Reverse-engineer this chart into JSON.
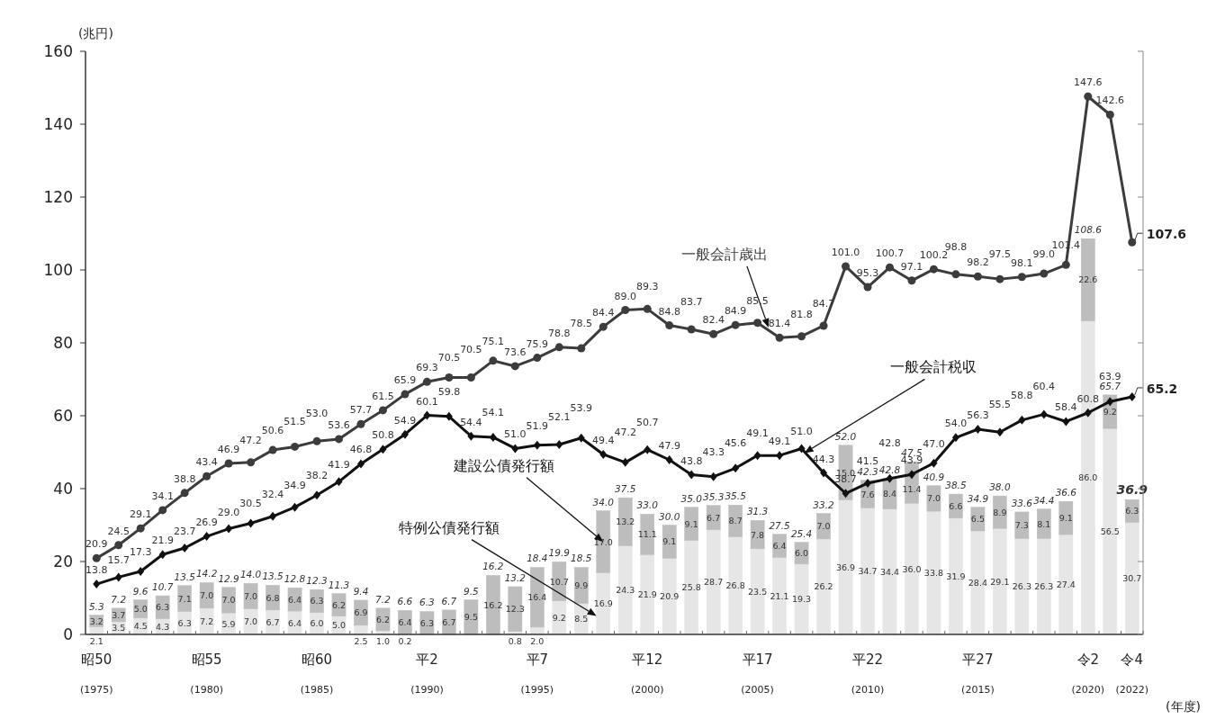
{
  "chart_data": {
    "type": "bar",
    "stacked": true,
    "ylabel": "(兆円)",
    "xlabel": "(年度)",
    "categories": [
      "昭50\n(1975)",
      null,
      null,
      null,
      null,
      "昭55\n(1980)",
      null,
      null,
      null,
      null,
      "昭60\n(1985)",
      null,
      null,
      null,
      null,
      "平2\n(1990)",
      null,
      null,
      null,
      null,
      "平7\n(1995)",
      null,
      null,
      null,
      null,
      "平12\n(2000)",
      null,
      null,
      null,
      null,
      "平17\n(2005)",
      null,
      null,
      null,
      null,
      "平22\n(2010)",
      null,
      null,
      null,
      null,
      "平27\n(2015)",
      null,
      null,
      null,
      null,
      "令2\n(2020)",
      null,
      "令4\n(2022)"
    ],
    "series": [
      {
        "name": "特例公債発行額",
        "type": "bar",
        "color": "#e6e6e6",
        "values": [
          2.1,
          3.5,
          4.5,
          4.3,
          6.3,
          7.2,
          5.9,
          7.0,
          6.7,
          6.4,
          6.0,
          5.0,
          2.5,
          1.0,
          0.2,
          null,
          null,
          null,
          null,
          0.8,
          2.0,
          9.2,
          8.5,
          16.9,
          24.3,
          21.9,
          20.9,
          25.8,
          28.7,
          26.8,
          23.5,
          21.1,
          19.3,
          26.2,
          36.9,
          34.7,
          34.4,
          36.0,
          33.8,
          31.9,
          28.4,
          29.1,
          26.3,
          26.3,
          27.4,
          86.0,
          56.5,
          30.7
        ],
        "value_labels": [
          "2.1",
          "3.5",
          "4.5",
          "4.3",
          "6.3",
          "7.2",
          "5.9",
          "7.0",
          "6.7",
          "6.4",
          "6.0",
          "5.0",
          "2.5",
          "1.0",
          "0.2",
          null,
          null,
          null,
          null,
          "0.8",
          "2.0",
          "9.2",
          "8.5",
          "16.9",
          "24.3",
          "21.9",
          "20.9",
          "25.8",
          "28.7",
          "26.8",
          "23.5",
          "21.1",
          "19.3",
          "26.2",
          "36.9",
          "34.7",
          "34.4",
          "36.0",
          "33.8",
          "31.9",
          "28.4",
          "29.1",
          "26.3",
          "26.3",
          "27.4",
          "86.0",
          "56.5",
          "30.7"
        ]
      },
      {
        "name": "建設公債発行額",
        "type": "bar",
        "color": "#bdbdbd",
        "values": [
          3.2,
          3.7,
          5.0,
          6.3,
          7.1,
          7.0,
          7.0,
          7.0,
          6.8,
          6.4,
          6.3,
          6.2,
          6.9,
          6.2,
          6.4,
          6.3,
          6.7,
          9.5,
          16.2,
          12.3,
          16.4,
          10.7,
          9.9,
          17.0,
          13.2,
          11.1,
          9.1,
          9.1,
          6.7,
          8.7,
          7.8,
          6.4,
          6.0,
          7.0,
          15.0,
          7.6,
          8.4,
          11.4,
          7.0,
          6.6,
          6.5,
          8.9,
          7.3,
          8.1,
          9.1,
          22.6,
          9.2,
          6.3
        ],
        "value_labels": [
          "3.2",
          "3.7",
          "5.0",
          "6.3",
          "7.1",
          "7.0",
          "7.0",
          "7.0",
          "6.8",
          "6.4",
          "6.3",
          "6.2",
          "6.9",
          "6.2",
          "6.4",
          "6.3",
          "6.7",
          "9.5",
          "16.2",
          "12.3",
          "16.4",
          "10.7",
          "9.9",
          "17.0",
          "13.2",
          "11.1",
          "9.1",
          "9.1",
          "6.7",
          "8.7",
          "7.8",
          "6.4",
          "6.0",
          "7.0",
          "15.0",
          "7.6",
          "8.4",
          "11.4",
          "7.0",
          "6.6",
          "6.5",
          "8.9",
          "7.3",
          "8.1",
          "9.1",
          "22.6",
          "9.2",
          "6.3"
        ]
      },
      {
        "name": "一般会計歳出",
        "type": "line",
        "marker": "circle",
        "color": "#3c3c3c",
        "values": [
          20.9,
          24.5,
          29.1,
          34.1,
          38.8,
          43.4,
          46.9,
          47.2,
          50.6,
          51.5,
          53.0,
          53.6,
          57.7,
          61.5,
          65.9,
          69.3,
          70.5,
          70.5,
          75.1,
          73.6,
          75.9,
          78.8,
          78.5,
          84.4,
          89.0,
          89.3,
          84.8,
          83.7,
          82.4,
          84.9,
          85.5,
          81.4,
          81.8,
          84.7,
          101.0,
          95.3,
          100.7,
          97.1,
          100.2,
          98.8,
          98.2,
          97.5,
          98.1,
          99.0,
          101.4,
          147.6,
          142.6,
          107.6
        ],
        "value_labels": [
          "20.9",
          "24.5",
          "29.1",
          "34.1",
          "38.8",
          "43.4",
          "46.9",
          "47.2",
          "50.6",
          "51.5",
          "53.0",
          "53.6",
          "57.7",
          "61.5",
          "65.9",
          "69.3",
          "70.5",
          "70.5",
          "75.1",
          "73.6",
          "75.9",
          "78.8",
          "78.5",
          "84.4",
          "89.0",
          "89.3",
          "84.8",
          "83.7",
          "82.4",
          "84.9",
          "85.5",
          "81.4",
          "81.8",
          "84.7",
          "101.0",
          "95.3",
          "100.7",
          "97.1",
          "100.2",
          "98.8",
          "98.2",
          "97.5",
          "98.1",
          "99.0",
          "101.4",
          "147.6",
          "142.6",
          "107.6"
        ]
      },
      {
        "name": "一般会計税収",
        "type": "line",
        "marker": "diamond",
        "color": "#111111",
        "values": [
          13.8,
          15.7,
          17.3,
          21.9,
          23.7,
          26.9,
          29.0,
          30.5,
          32.4,
          34.9,
          38.2,
          41.9,
          46.8,
          50.8,
          54.9,
          60.1,
          59.8,
          54.4,
          54.1,
          51.0,
          51.9,
          52.1,
          53.9,
          49.4,
          47.2,
          50.7,
          47.9,
          43.8,
          43.3,
          45.6,
          49.1,
          49.1,
          51.0,
          44.3,
          38.7,
          41.5,
          42.8,
          43.9,
          47.0,
          54.0,
          56.3,
          55.5,
          58.8,
          60.4,
          58.4,
          60.8,
          63.9,
          65.2
        ],
        "value_labels": [
          "13.8",
          "15.7",
          "17.3",
          "21.9",
          "23.7",
          "26.9",
          "29.0",
          "30.5",
          "32.4",
          "34.9",
          "38.2",
          "41.9",
          "46.8",
          "50.8",
          "54.9",
          "60.1",
          "59.8",
          "54.4",
          "54.1",
          "51.0",
          "51.9",
          "52.1",
          "53.9",
          "49.4",
          "47.2",
          "50.7",
          "47.9",
          "43.8",
          "43.3",
          "45.6",
          "49.1",
          "49.1",
          "51.0",
          "44.3",
          "38.7",
          "41.5",
          "42.8",
          "43.9",
          "47.0",
          "54.0",
          "56.3",
          "55.5",
          "58.8",
          "60.4",
          "58.4",
          "60.8",
          "63.9",
          "65.2"
        ]
      }
    ],
    "totals": [
      "5.3",
      "7.2",
      "9.6",
      "10.7",
      "13.5",
      "14.2",
      "12.9",
      "14.0",
      "13.5",
      "12.8",
      "12.3",
      "11.3",
      "9.4",
      "7.2",
      "6.6",
      "6.3",
      "6.7",
      "9.5",
      "16.2",
      "13.2",
      "18.4",
      "19.9",
      "18.5",
      "34.0",
      "37.5",
      "33.0",
      "30.0",
      "35.0",
      "35.3",
      "35.5",
      "31.3",
      "27.5",
      "25.4",
      "33.2",
      "52.0",
      "42.3",
      "42.8",
      "47.5",
      "40.9",
      "38.5",
      "34.9",
      "38.0",
      "33.6",
      "34.4",
      "36.6",
      "108.6",
      "65.7",
      "36.9"
    ],
    "data_labels": true,
    "ylim": [
      0,
      160
    ],
    "yticks": [
      0,
      20,
      40,
      60,
      80,
      100,
      120,
      140,
      160
    ],
    "grid": false
  }
}
